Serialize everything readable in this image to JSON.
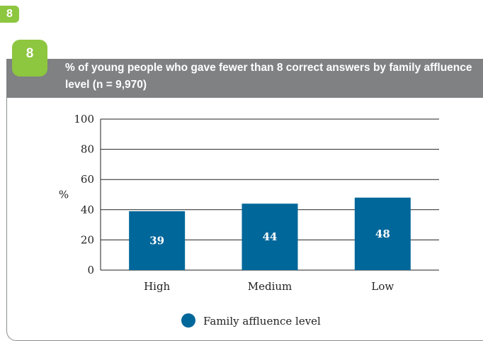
{
  "top_badge": "8",
  "top_cut_text": "",
  "figure": {
    "badge": "8",
    "title": "% of young people who gave fewer than 8 correct answers by family affluence level (n = 9,970)"
  },
  "chart_data": {
    "type": "bar",
    "title": "% of young people who gave fewer than 8 correct answers by family affluence level (n = 9,970)",
    "xlabel": "",
    "ylabel": "%",
    "categories": [
      "High",
      "Medium",
      "Low"
    ],
    "series": [
      {
        "name": "Family affluence level",
        "values": [
          39,
          44,
          48
        ]
      }
    ],
    "ylim": [
      0,
      100
    ],
    "yticks": [
      0,
      20,
      40,
      60,
      80,
      100
    ],
    "grid": true,
    "legend": "bottom",
    "colors": {
      "bar": "#00679a",
      "label": "#ffffff",
      "grid": "#222222"
    }
  }
}
